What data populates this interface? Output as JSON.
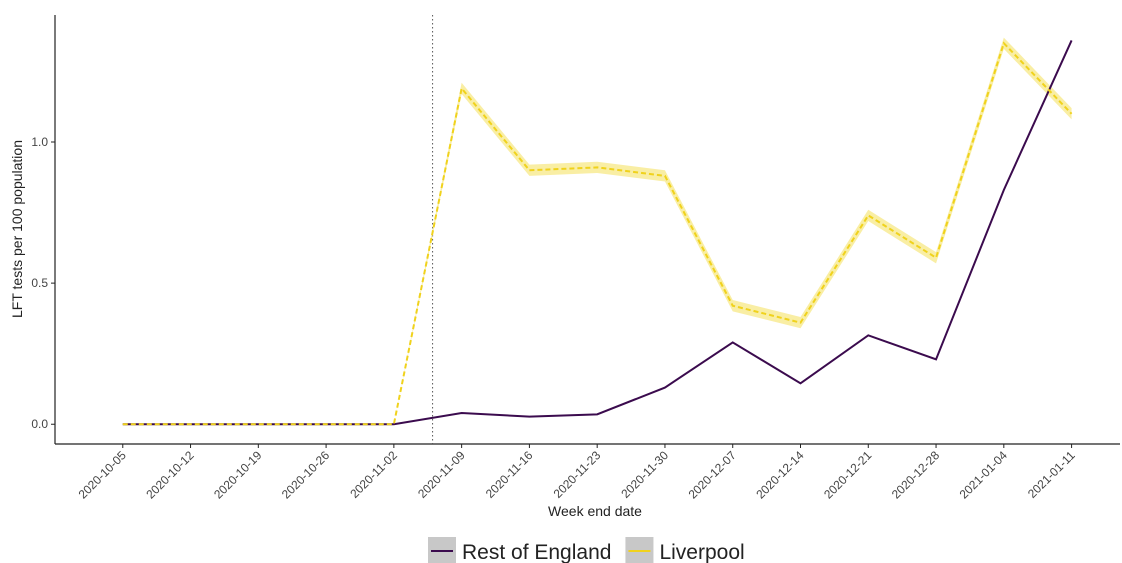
{
  "chart_data": {
    "type": "line",
    "x_label": "Week end date",
    "y_label": "LFT tests per 100 population",
    "x": [
      "2020-10-05",
      "2020-10-12",
      "2020-10-19",
      "2020-10-26",
      "2020-11-02",
      "2020-11-09",
      "2020-11-16",
      "2020-11-23",
      "2020-11-30",
      "2020-12-07",
      "2020-12-14",
      "2020-12-21",
      "2020-12-28",
      "2021-01-04",
      "2021-01-11"
    ],
    "xlim": [
      "2020-09-28",
      "2021-01-16"
    ],
    "xticks": [
      "2020-10-05",
      "2020-10-12",
      "2020-10-19",
      "2020-10-26",
      "2020-11-02",
      "2020-11-09",
      "2020-11-16",
      "2020-11-23",
      "2020-11-30",
      "2020-12-07",
      "2020-12-14",
      "2020-12-21",
      "2020-12-28",
      "2021-01-04",
      "2021-01-11"
    ],
    "ylim": [
      -0.07,
      1.45
    ],
    "yticks": [
      {
        "value": 0,
        "label": "0.0"
      },
      {
        "value": 0.5,
        "label": "0.5"
      },
      {
        "value": 1,
        "label": "1.0"
      }
    ],
    "vline": "2020-11-06",
    "legend": "bottom",
    "series": [
      {
        "name": "Rest of England",
        "color": "#3b0b4e",
        "dash": false,
        "values": [
          0,
          0,
          0,
          0,
          0,
          0.04,
          0.027,
          0.035,
          0.13,
          0.29,
          0.145,
          0.315,
          0.23,
          0.83,
          1.36
        ]
      },
      {
        "name": "Liverpool",
        "color": "#f0d21c",
        "band_color": "#f8ec9a",
        "dash": true,
        "values": [
          0,
          0,
          0,
          0,
          0,
          1.19,
          0.9,
          0.91,
          0.88,
          0.42,
          0.36,
          0.74,
          0.59,
          1.35,
          1.1
        ],
        "lower": [
          0,
          0,
          0,
          0,
          0,
          1.17,
          0.88,
          0.89,
          0.86,
          0.4,
          0.34,
          0.72,
          0.57,
          1.33,
          1.08
        ],
        "upper": [
          0,
          0,
          0,
          0,
          0,
          1.21,
          0.92,
          0.93,
          0.9,
          0.44,
          0.38,
          0.76,
          0.61,
          1.37,
          1.12
        ]
      }
    ]
  }
}
